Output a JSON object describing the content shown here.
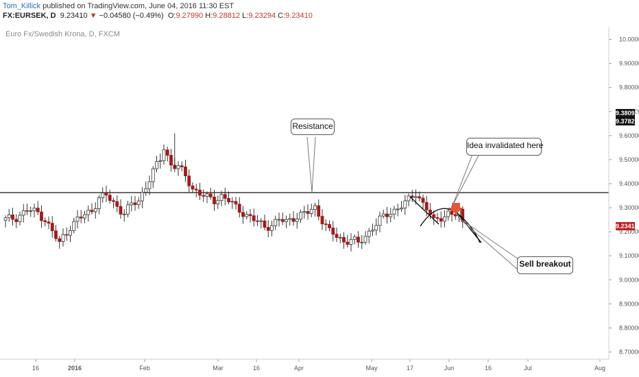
{
  "header": {
    "author": "Tom_Killick",
    "published": "published on TradingView.com, June 04, 2016 11:30 EST"
  },
  "symbol_bar": {
    "symbol": "FX:EURSEK, D",
    "price": "9.23410",
    "change": "−0.04580 (−0.49%)",
    "o_label": "O:",
    "o_value": "9.27990",
    "h_label": "H:",
    "h_value": "9.28812",
    "l_label": "L:",
    "l_value": "9.23294",
    "c_label": "C:",
    "c_value": "9.23410"
  },
  "chart_title": "Euro Fx/Swedish Krona, D, FXCM",
  "badges": {
    "b1": "9.38093",
    "b2": "9.37821",
    "b3": "9.23410"
  },
  "annotations": {
    "resistance": "Resistance",
    "idea_invalidated": "Idea invalidated here",
    "sell_breakout": "Sell breakout"
  },
  "colors": {
    "up_candle": "#ffffff",
    "down_candle": "#a31b1b",
    "wick": "#333333",
    "arrow": "#e05a3a",
    "badge_dark": "#111111",
    "badge_red": "#c0201f"
  },
  "chart_data": {
    "type": "candlestick",
    "title": "Euro Fx/Swedish Krona, D, FXCM",
    "y_ticks": [
      "10.00000",
      "9.90000",
      "9.80000",
      "9.70000",
      "9.60000",
      "9.50000",
      "9.40000",
      "9.30000",
      "9.20000",
      "9.10000",
      "9.00000",
      "8.90000",
      "8.80000",
      "8.70000"
    ],
    "x_ticks": [
      "16",
      "2016",
      "Feb",
      "Mar",
      "16",
      "Apr",
      "May",
      "17",
      "Jun",
      "16",
      "Jul",
      "Aug"
    ],
    "ylim": [
      8.67,
      10.05
    ],
    "resistance_level": 9.381,
    "close_path": [
      [
        0,
        9.25
      ],
      [
        3,
        9.26
      ],
      [
        6,
        9.29
      ],
      [
        9,
        9.28
      ],
      [
        11,
        9.25
      ],
      [
        13,
        9.2
      ],
      [
        15,
        9.15
      ],
      [
        16,
        9.18
      ],
      [
        18,
        9.22
      ],
      [
        20,
        9.25
      ],
      [
        22,
        9.27
      ],
      [
        24,
        9.29
      ],
      [
        26,
        9.34
      ],
      [
        28,
        9.35
      ],
      [
        30,
        9.32
      ],
      [
        32,
        9.29
      ],
      [
        33,
        9.28
      ],
      [
        35,
        9.31
      ],
      [
        37,
        9.33
      ],
      [
        39,
        9.39
      ],
      [
        41,
        9.45
      ],
      [
        43,
        9.5
      ],
      [
        44,
        9.55
      ],
      [
        46,
        9.48
      ],
      [
        48,
        9.47
      ],
      [
        50,
        9.43
      ],
      [
        52,
        9.38
      ],
      [
        54,
        9.36
      ],
      [
        56,
        9.34
      ],
      [
        58,
        9.33
      ],
      [
        60,
        9.35
      ],
      [
        62,
        9.33
      ],
      [
        64,
        9.3
      ],
      [
        66,
        9.28
      ],
      [
        68,
        9.26
      ],
      [
        70,
        9.24
      ],
      [
        72,
        9.22
      ],
      [
        74,
        9.23
      ],
      [
        76,
        9.25
      ],
      [
        78,
        9.24
      ],
      [
        80,
        9.26
      ],
      [
        82,
        9.27
      ],
      [
        84,
        9.28
      ],
      [
        86,
        9.3
      ],
      [
        88,
        9.25
      ],
      [
        90,
        9.2
      ],
      [
        92,
        9.18
      ],
      [
        94,
        9.16
      ],
      [
        96,
        9.17
      ],
      [
        98,
        9.15
      ],
      [
        100,
        9.18
      ],
      [
        102,
        9.22
      ],
      [
        104,
        9.25
      ],
      [
        106,
        9.27
      ],
      [
        108,
        9.29
      ],
      [
        110,
        9.31
      ],
      [
        112,
        9.33
      ],
      [
        114,
        9.36
      ],
      [
        115,
        9.34
      ],
      [
        117,
        9.3
      ],
      [
        119,
        9.24
      ],
      [
        121,
        9.26
      ],
      [
        123,
        9.28
      ],
      [
        125,
        9.27
      ],
      [
        126,
        9.28
      ],
      [
        127,
        9.23
      ]
    ]
  }
}
